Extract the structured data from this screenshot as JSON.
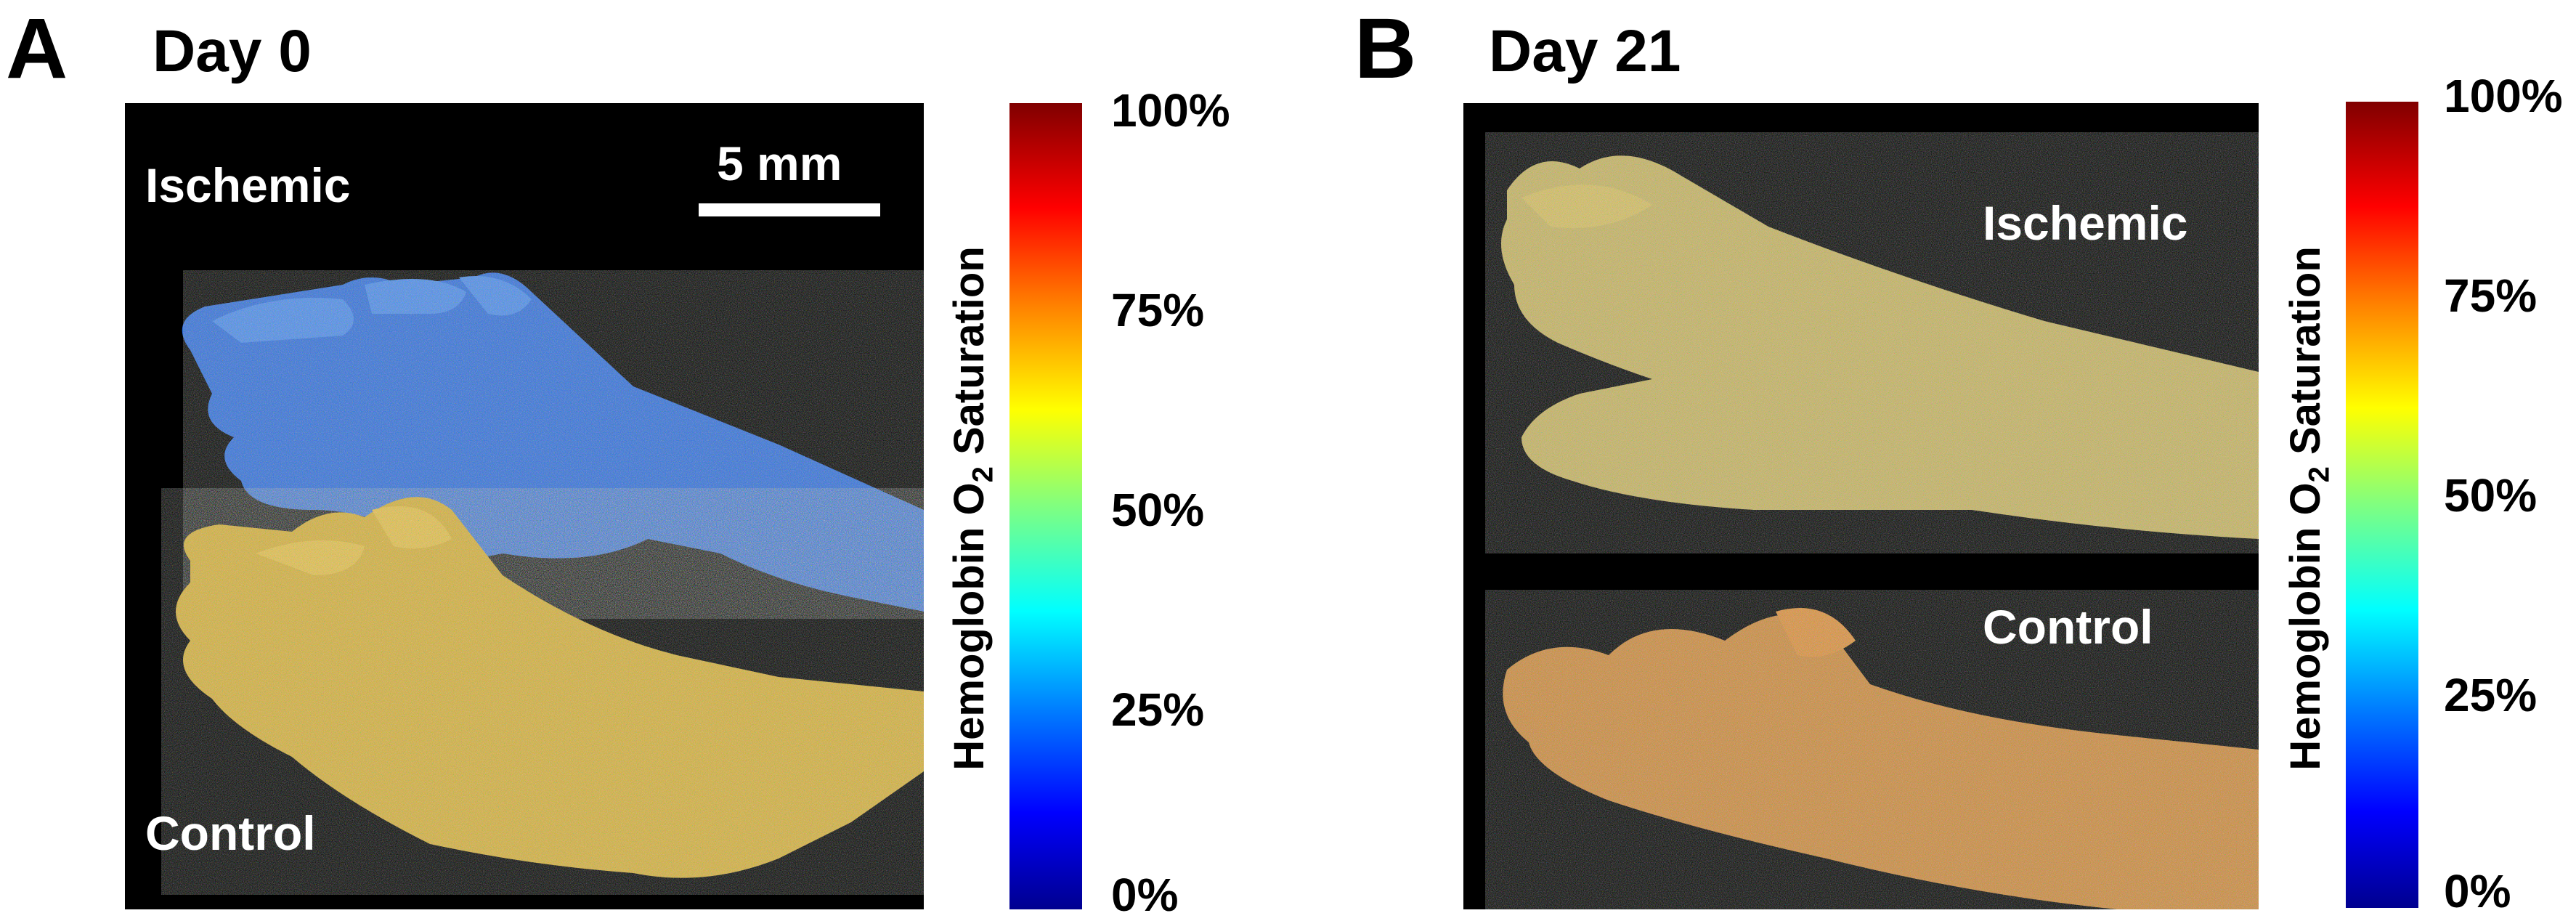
{
  "panels": [
    {
      "letter": "A",
      "title": "Day 0",
      "labels": {
        "top": "Ischemic",
        "bottom": "Control"
      },
      "scale_bar_label": "5 mm",
      "colorbar": {
        "axis_label_text": "Hemoglobin O",
        "axis_label_sub": "2",
        "axis_label_tail": " Saturation",
        "ticks": [
          "100%",
          "75%",
          "50%",
          "25%",
          "0%"
        ]
      }
    },
    {
      "letter": "B",
      "title": "Day 21",
      "labels": {
        "top": "Ischemic",
        "bottom": "Control"
      },
      "colorbar": {
        "axis_label_text": "Hemoglobin O",
        "axis_label_sub": "2",
        "axis_label_tail": " Saturation",
        "ticks": [
          "100%",
          "75%",
          "50%",
          "25%",
          "0%"
        ]
      }
    }
  ],
  "colors": {
    "ischemic_day0": "#2f6fe0",
    "control_day0": "#d9b23a",
    "ischemic_day21": "#c9b560",
    "control_day21": "#d08a3a",
    "background": "#000000"
  }
}
